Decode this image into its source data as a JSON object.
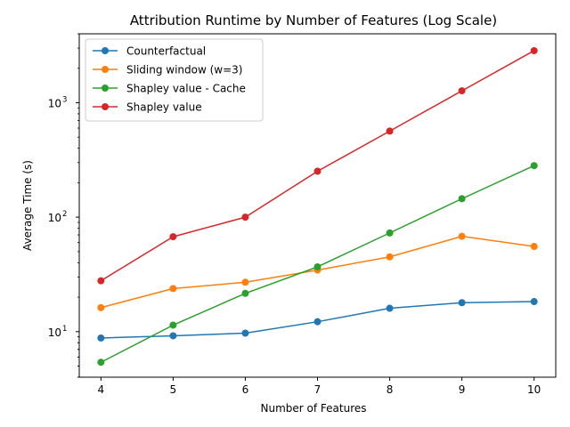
{
  "chart_data": {
    "type": "line",
    "title": "Attribution Runtime by Number of Features (Log Scale)",
    "xlabel": "Number of Features",
    "ylabel": "Average Time (s)",
    "yscale": "log",
    "x": [
      4,
      5,
      6,
      7,
      8,
      9,
      10
    ],
    "x_ticks": [
      "4",
      "5",
      "6",
      "7",
      "8",
      "9",
      "10"
    ],
    "y_ticks": [
      {
        "value": 10,
        "base": "10",
        "exp": "1"
      },
      {
        "value": 100,
        "base": "10",
        "exp": "2"
      },
      {
        "value": 1000,
        "base": "10",
        "exp": "3"
      }
    ],
    "xlim": [
      3.7,
      10.3
    ],
    "ylim": [
      4.0,
      4000
    ],
    "grid": false,
    "legend_position": "top-left",
    "series": [
      {
        "name": "Counterfactual",
        "color": "#1f77b4",
        "values": [
          8.8,
          9.2,
          9.7,
          12.2,
          16.0,
          17.9,
          18.3
        ]
      },
      {
        "name": "Sliding window (w=3)",
        "color": "#ff7f0e",
        "values": [
          16.2,
          23.8,
          27.0,
          34.5,
          45.0,
          68.0,
          55.5
        ]
      },
      {
        "name": "Shapley value - Cache",
        "color": "#2ca02c",
        "values": [
          5.4,
          11.4,
          21.6,
          36.8,
          72.8,
          145.0,
          282.0
        ]
      },
      {
        "name": "Shapley value",
        "color": "#d62728",
        "values": [
          27.8,
          67.5,
          100.0,
          252.0,
          565.0,
          1270.0,
          2850.0
        ]
      }
    ]
  }
}
